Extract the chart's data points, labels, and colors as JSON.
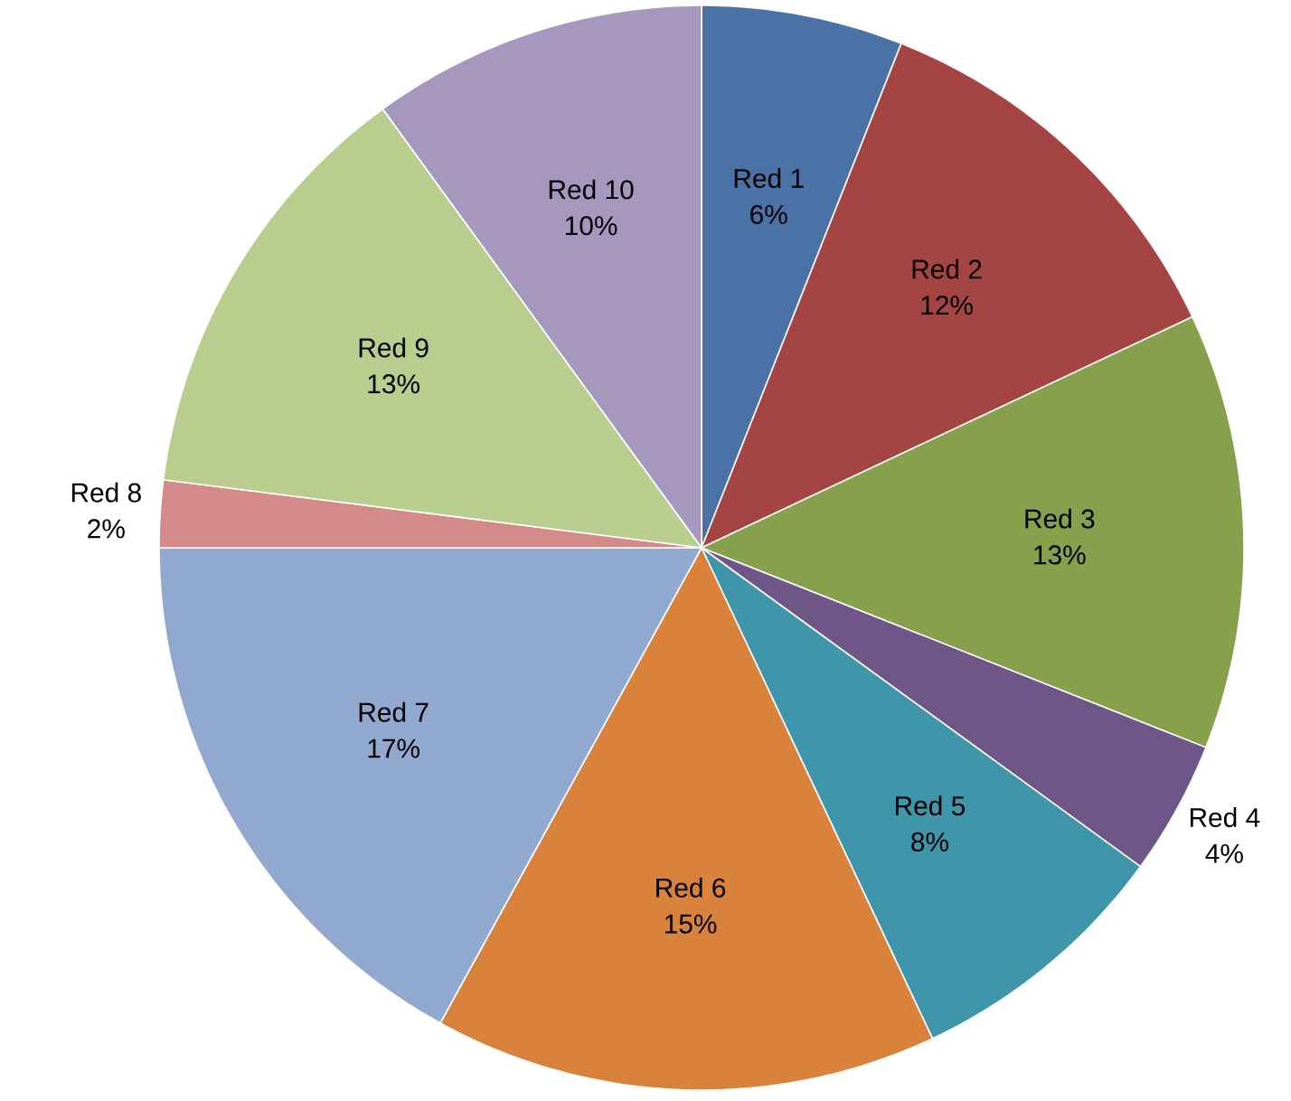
{
  "chart_data": {
    "type": "pie",
    "categories": [
      "Red 1",
      "Red 2",
      "Red 3",
      "Red 4",
      "Red 5",
      "Red 6",
      "Red 7",
      "Red 8",
      "Red 9",
      "Red 10"
    ],
    "values": [
      6,
      12,
      13,
      4,
      8,
      15,
      17,
      2,
      13,
      10
    ],
    "value_labels": [
      "6%",
      "12%",
      "13%",
      "4%",
      "8%",
      "15%",
      "17%",
      "2%",
      "13%",
      "10%"
    ],
    "colors": [
      "#4a72a6",
      "#a54543",
      "#86a04b",
      "#6e5689",
      "#3f95aa",
      "#d8823b",
      "#92a9cf",
      "#d48a89",
      "#b8cd8e",
      "#a597bd"
    ]
  }
}
